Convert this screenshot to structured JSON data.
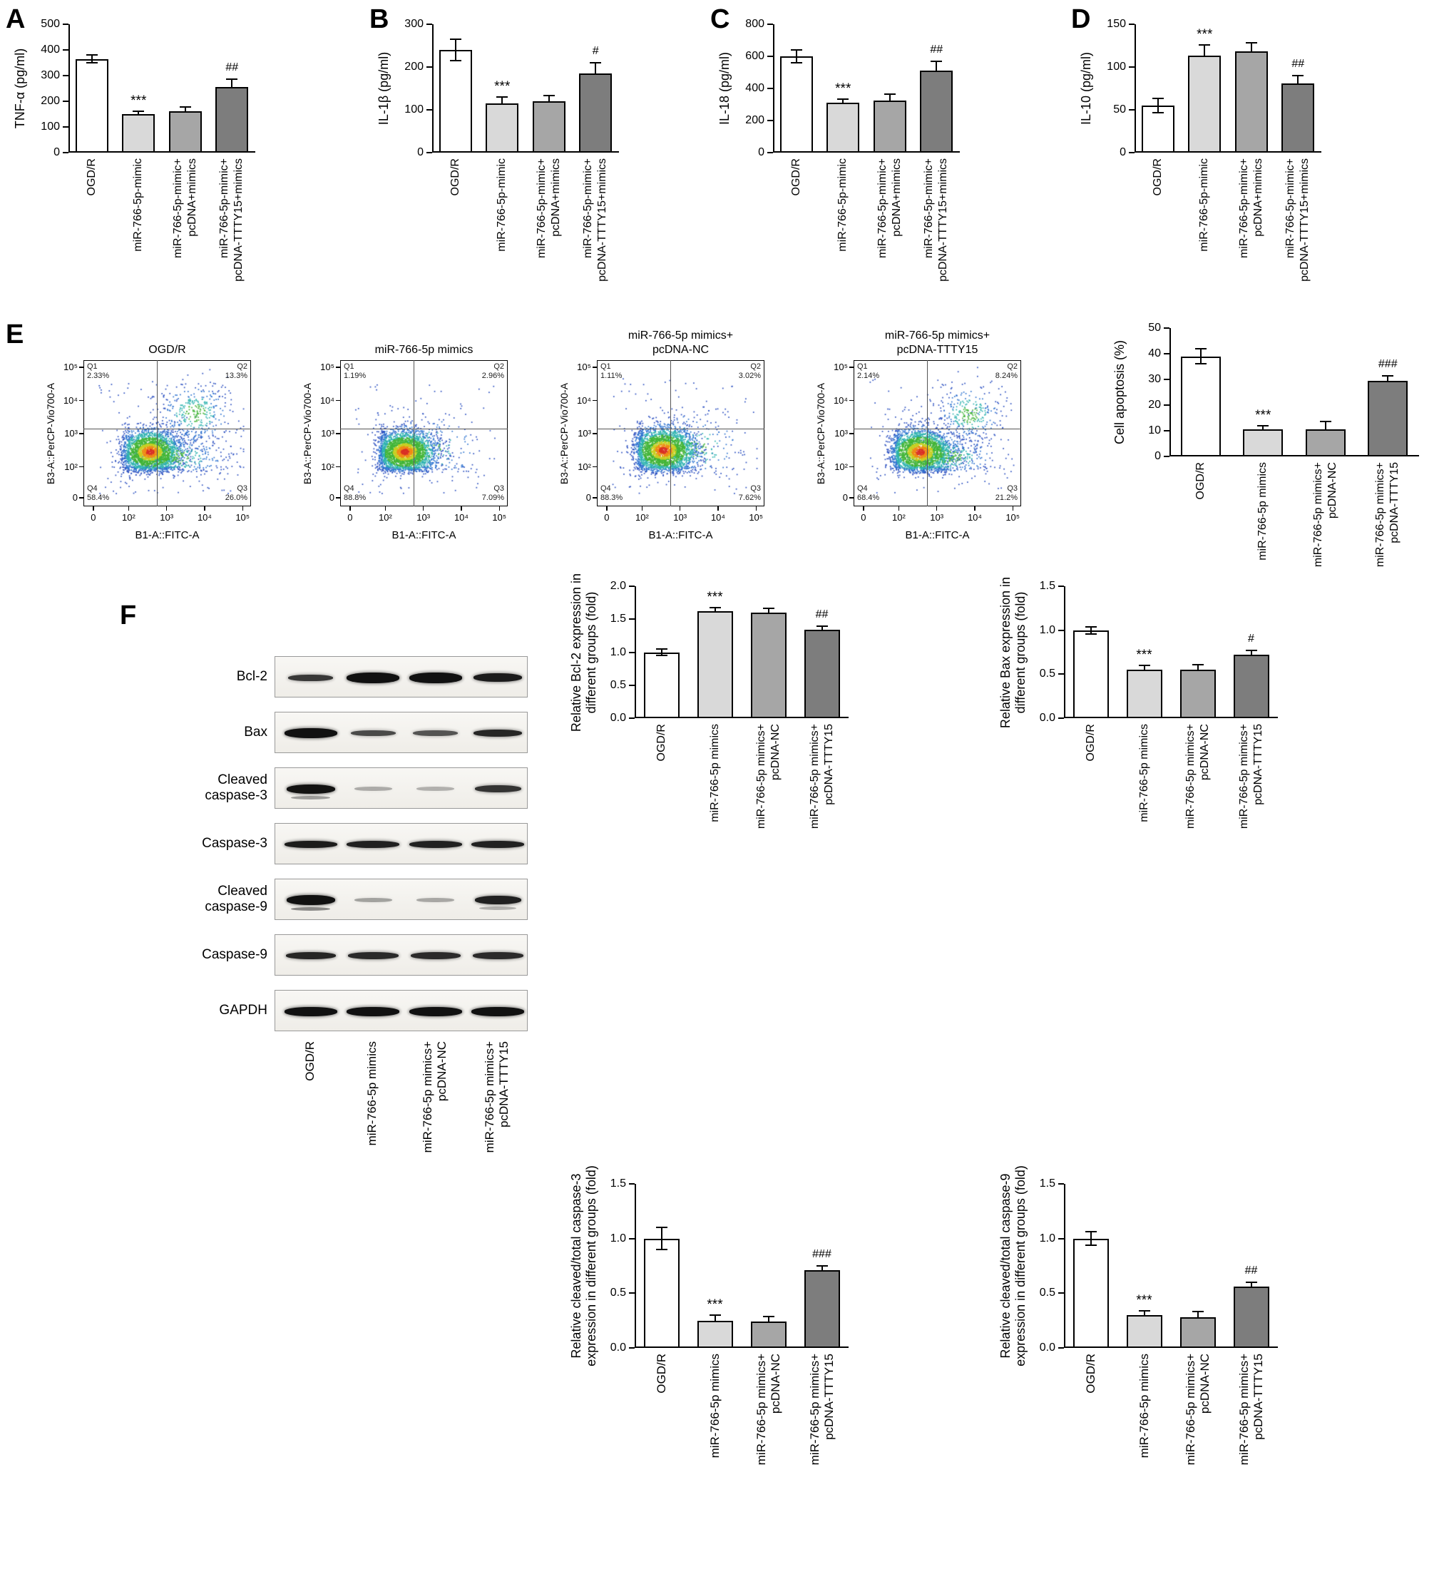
{
  "panels": {
    "a": "A",
    "b": "B",
    "c": "C",
    "d": "D",
    "e": "E",
    "f": "F"
  },
  "palette": {
    "bar_fills": [
      "#ffffff",
      "#d9d9d9",
      "#a6a6a6",
      "#7d7d7d"
    ],
    "axis": "#000000"
  },
  "group_label_sets": {
    "hyphen": [
      [
        "OGD/R"
      ],
      [
        "miR-766-5p-mimic"
      ],
      [
        "miR-766-5p-mimic+",
        "pcDNA+mimics"
      ],
      [
        "miR-766-5p-mimic+",
        "pcDNA-TTTY15+mimics"
      ]
    ],
    "mimics": [
      [
        "OGD/R"
      ],
      [
        "miR-766-5p mimics"
      ],
      [
        "miR-766-5p mimics+",
        "pcDNA-NC"
      ],
      [
        "miR-766-5p mimics+",
        "pcDNA-TTTY15"
      ]
    ]
  },
  "chart_data": [
    {
      "id": "tnf",
      "panel": "A",
      "type": "bar",
      "ylabel": [
        "TNF-α (pg/ml)"
      ],
      "ylim": [
        0,
        500
      ],
      "yticks": [
        "0",
        "100",
        "200",
        "300",
        "400",
        "500"
      ],
      "groups": "hyphen",
      "values": [
        365,
        150,
        160,
        255
      ],
      "errors": [
        15,
        12,
        18,
        30
      ],
      "sig": [
        "",
        "***",
        "",
        "##"
      ]
    },
    {
      "id": "il1b",
      "panel": "B",
      "type": "bar",
      "ylabel": [
        "IL-1β (pg/ml)"
      ],
      "ylim": [
        0,
        300
      ],
      "yticks": [
        "0",
        "100",
        "200",
        "300"
      ],
      "groups": "hyphen",
      "values": [
        240,
        115,
        120,
        185
      ],
      "errors": [
        25,
        15,
        13,
        25
      ],
      "sig": [
        "",
        "***",
        "",
        "#"
      ]
    },
    {
      "id": "il18",
      "panel": "C",
      "type": "bar",
      "ylabel": [
        "IL-18 (pg/ml)"
      ],
      "ylim": [
        0,
        800
      ],
      "yticks": [
        "0",
        "200",
        "400",
        "600",
        "800"
      ],
      "groups": "hyphen",
      "values": [
        600,
        310,
        325,
        510
      ],
      "errors": [
        40,
        25,
        40,
        60
      ],
      "sig": [
        "",
        "***",
        "",
        "##"
      ]
    },
    {
      "id": "il10",
      "panel": "D",
      "type": "bar",
      "ylabel": [
        "IL-10 (pg/ml)"
      ],
      "ylim": [
        0,
        150
      ],
      "yticks": [
        "0",
        "50",
        "100",
        "150"
      ],
      "groups": "hyphen",
      "values": [
        55,
        113,
        118,
        81
      ],
      "errors": [
        8,
        13,
        10,
        9
      ],
      "sig": [
        "",
        "***",
        "",
        "##"
      ]
    },
    {
      "id": "apoptosis",
      "panel": "E",
      "type": "bar",
      "ylabel": [
        "Cell apoptosis (%)"
      ],
      "ylim": [
        0,
        50
      ],
      "yticks": [
        "0",
        "10",
        "20",
        "30",
        "40",
        "50"
      ],
      "groups": "mimics",
      "values": [
        39,
        10.5,
        10.5,
        29.5
      ],
      "errors": [
        3,
        1.5,
        3,
        2
      ],
      "sig": [
        "",
        "***",
        "",
        "###"
      ]
    },
    {
      "id": "bcl2",
      "panel": "F",
      "type": "bar",
      "ylabel": [
        "Relative Bcl-2 expression in",
        "different groups (fold)"
      ],
      "ylim": [
        0,
        2
      ],
      "yticks": [
        "0.0",
        "0.5",
        "1.0",
        "1.5",
        "2.0"
      ],
      "groups": "mimics",
      "values": [
        1.0,
        1.62,
        1.6,
        1.34
      ],
      "errors": [
        0.05,
        0.06,
        0.06,
        0.06
      ],
      "sig": [
        "",
        "***",
        "",
        "##"
      ]
    },
    {
      "id": "bax",
      "panel": "F",
      "type": "bar",
      "ylabel": [
        "Relative Bax expression in",
        "different groups (fold)"
      ],
      "ylim": [
        0,
        1.5
      ],
      "yticks": [
        "0.0",
        "0.5",
        "1.0",
        "1.5"
      ],
      "groups": "mimics",
      "values": [
        1.0,
        0.55,
        0.55,
        0.72
      ],
      "errors": [
        0.04,
        0.05,
        0.06,
        0.05
      ],
      "sig": [
        "",
        "***",
        "",
        "#"
      ]
    },
    {
      "id": "casp3",
      "panel": "F",
      "type": "bar",
      "ylabel": [
        "Relative cleaved/total caspase-3",
        "expression in different groups (fold)"
      ],
      "ylim": [
        0,
        1.5
      ],
      "yticks": [
        "0.0",
        "0.5",
        "1.0",
        "1.5"
      ],
      "groups": "mimics",
      "values": [
        1.0,
        0.25,
        0.24,
        0.71
      ],
      "errors": [
        0.1,
        0.05,
        0.05,
        0.04
      ],
      "sig": [
        "",
        "***",
        "",
        "###"
      ]
    },
    {
      "id": "flow",
      "panel": "E",
      "type": "scatter-panel",
      "xlabel": "B1-A::FITC-A",
      "ylabel": "B3-A::PerCP-Vio700-A",
      "xticks": [
        "0",
        "10²",
        "10³",
        "10⁴",
        "10⁵"
      ],
      "yticks": [
        "0",
        "10²",
        "10³",
        "10⁴",
        "10⁵"
      ],
      "plots": [
        {
          "title": [
            "OGD/R"
          ],
          "quadrants": {
            "Q1": "2.33%",
            "Q2": "13.3%",
            "Q3": "26.0%",
            "Q4": "58.4%"
          },
          "clusters": [
            {
              "x": 2.55,
              "y": 2.45,
              "sx": 0.42,
              "sy": 0.34,
              "n": 2500,
              "hot": true
            },
            {
              "x": 3.75,
              "y": 3.65,
              "sx": 0.5,
              "sy": 0.48,
              "n": 380,
              "hot": false
            },
            {
              "x": 3.2,
              "y": 2.3,
              "sx": 0.75,
              "sy": 0.38,
              "n": 420,
              "hot": false
            }
          ],
          "sparse": 110
        },
        {
          "title": [
            "miR-766-5p mimics"
          ],
          "quadrants": {
            "Q1": "1.19%",
            "Q2": "2.96%",
            "Q3": "7.09%",
            "Q4": "88.8%"
          },
          "clusters": [
            {
              "x": 2.5,
              "y": 2.45,
              "sx": 0.42,
              "sy": 0.34,
              "n": 2800,
              "hot": true
            },
            {
              "x": 3.1,
              "y": 2.55,
              "sx": 0.75,
              "sy": 0.55,
              "n": 170,
              "hot": false
            }
          ],
          "sparse": 90
        },
        {
          "title": [
            "miR-766-5p mimics+",
            "pcDNA-NC"
          ],
          "quadrants": {
            "Q1": "1.11%",
            "Q2": "3.02%",
            "Q3": "7.62%",
            "Q4": "88.3%"
          },
          "clusters": [
            {
              "x": 2.55,
              "y": 2.5,
              "sx": 0.45,
              "sy": 0.36,
              "n": 2800,
              "hot": true
            },
            {
              "x": 3.25,
              "y": 2.6,
              "sx": 0.8,
              "sy": 0.6,
              "n": 190,
              "hot": false
            }
          ],
          "sparse": 110
        },
        {
          "title": [
            "miR-766-5p mimics+",
            "pcDNA-TTTY15"
          ],
          "quadrants": {
            "Q1": "2.14%",
            "Q2": "8.24%",
            "Q3": "21.2%",
            "Q4": "68.4%"
          },
          "clusters": [
            {
              "x": 2.55,
              "y": 2.45,
              "sx": 0.45,
              "sy": 0.35,
              "n": 2600,
              "hot": true
            },
            {
              "x": 3.85,
              "y": 3.6,
              "sx": 0.45,
              "sy": 0.45,
              "n": 300,
              "hot": false
            },
            {
              "x": 3.3,
              "y": 2.3,
              "sx": 0.65,
              "sy": 0.35,
              "n": 350,
              "hot": false
            }
          ],
          "sparse": 100
        }
      ]
    },
    {
      "id": "casp9",
      "panel": "F",
      "type": "bar",
      "ylabel": [
        "Relative cleaved/total caspase-9",
        "expression in different groups (fold)"
      ],
      "ylim": [
        0,
        1.5
      ],
      "yticks": [
        "0.0",
        "0.5",
        "1.0",
        "1.5"
      ],
      "groups": "mimics",
      "values": [
        1.0,
        0.3,
        0.28,
        0.56
      ],
      "errors": [
        0.06,
        0.04,
        0.05,
        0.04
      ],
      "sig": [
        "",
        "***",
        "",
        "##"
      ]
    }
  ],
  "blot": {
    "rows": [
      {
        "label": [
          "Bcl-2"
        ],
        "bands": [
          [
            0.85,
            9,
            0.8
          ],
          [
            1,
            15,
            0.97
          ],
          [
            1,
            15,
            0.97
          ],
          [
            0.92,
            12,
            0.92
          ]
        ]
      },
      {
        "label": [
          "Bax"
        ],
        "bands": [
          [
            1,
            14,
            0.97
          ],
          [
            0.85,
            8,
            0.72
          ],
          [
            0.85,
            8,
            0.68
          ],
          [
            0.92,
            10,
            0.88
          ]
        ]
      },
      {
        "label": [
          "Cleaved",
          "caspase-3"
        ],
        "bands": [
          [
            0.92,
            13,
            0.96,
            0.4
          ],
          [
            0.72,
            6,
            0.3
          ],
          [
            0.72,
            6,
            0.28
          ],
          [
            0.88,
            10,
            0.82
          ]
        ]
      },
      {
        "label": [
          "Caspase-3"
        ],
        "bands": [
          [
            1,
            10,
            0.92
          ],
          [
            1,
            10,
            0.9
          ],
          [
            1,
            10,
            0.9
          ],
          [
            1,
            10,
            0.9
          ]
        ]
      },
      {
        "label": [
          "Cleaved",
          "caspase-9"
        ],
        "bands": [
          [
            0.92,
            14,
            0.97,
            0.5
          ],
          [
            0.72,
            6,
            0.34
          ],
          [
            0.72,
            6,
            0.32
          ],
          [
            0.88,
            12,
            0.9,
            0.3
          ]
        ]
      },
      {
        "label": [
          "Caspase-9"
        ],
        "bands": [
          [
            0.95,
            10,
            0.88
          ],
          [
            0.95,
            10,
            0.86
          ],
          [
            0.95,
            10,
            0.86
          ],
          [
            0.95,
            10,
            0.86
          ]
        ]
      },
      {
        "label": [
          "GAPDH"
        ],
        "bands": [
          [
            1,
            13,
            0.97
          ],
          [
            1,
            13,
            0.97
          ],
          [
            1,
            13,
            0.97
          ],
          [
            1,
            13,
            0.97
          ]
        ]
      }
    ],
    "lane_labels": "mimics"
  }
}
